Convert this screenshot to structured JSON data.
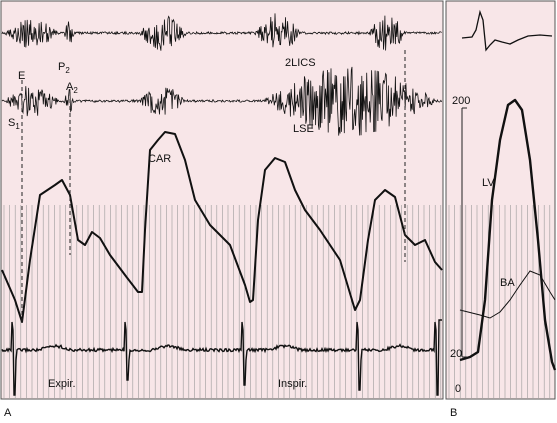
{
  "panel_a": {
    "label": "A",
    "traces": {
      "phono_top": "2LICS",
      "phono_bottom": "LSE",
      "carotid": "CAR"
    },
    "markers": {
      "e": "E",
      "p2": {
        "main": "P",
        "sub": "2"
      },
      "a2": {
        "main": "A",
        "sub": "2"
      },
      "s1": {
        "main": "S",
        "sub": "1"
      }
    },
    "phases": {
      "expiration": "Expir.",
      "inspiration": "Inspir."
    }
  },
  "panel_b": {
    "label": "B",
    "traces": {
      "lv": "LV",
      "ba": "BA"
    },
    "scale": {
      "top": "200",
      "middle": "20",
      "bottom": "0"
    }
  }
}
